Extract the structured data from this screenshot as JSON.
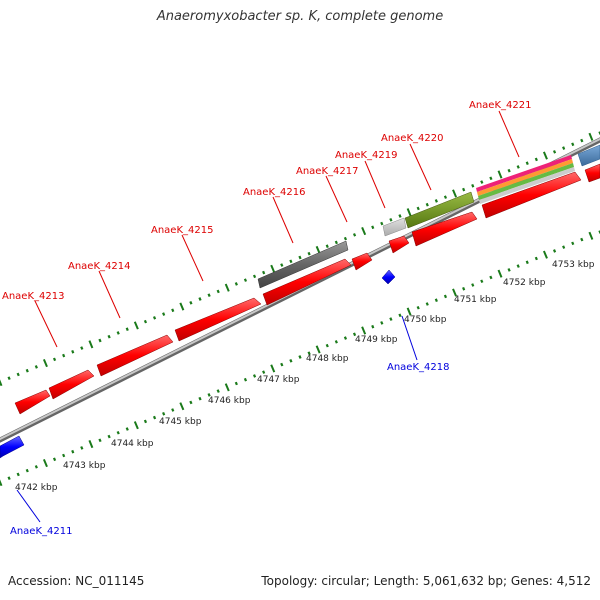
{
  "title": "Anaeromyxobacter sp. K, complete genome",
  "footer": {
    "accession": "Accession: NC_011145",
    "summary": "Topology: circular; Length: 5,061,632 bp; Genes: 4,512"
  },
  "colors": {
    "forward_gene": "#ff0000",
    "reverse_gene": "#0000ff",
    "backbone": "#999999",
    "tick": "#1a7a1a",
    "forward_label": "#dd0000",
    "reverse_label": "#0000dd",
    "feature_gray": "#666666",
    "feature_lightgray": "#bbbbbb",
    "feature_olive": "#779922",
    "feature_steelblue": "#5588bb"
  },
  "scale": {
    "unit": "kbp",
    "labels": [
      {
        "kbp": 4742,
        "text": "4742 kbp"
      },
      {
        "kbp": 4743,
        "text": "4743 kbp"
      },
      {
        "kbp": 4744,
        "text": "4744 kbp"
      },
      {
        "kbp": 4745,
        "text": "4745 kbp"
      },
      {
        "kbp": 4746,
        "text": "4746 kbp"
      },
      {
        "kbp": 4747,
        "text": "4747 kbp"
      },
      {
        "kbp": 4748,
        "text": "4748 kbp"
      },
      {
        "kbp": 4749,
        "text": "4749 kbp"
      },
      {
        "kbp": 4750,
        "text": "4750 kbp"
      },
      {
        "kbp": 4751,
        "text": "4751 kbp"
      },
      {
        "kbp": 4752,
        "text": "4752 kbp"
      },
      {
        "kbp": 4753,
        "text": "4753 kbp"
      }
    ]
  },
  "genes": {
    "forward": [
      {
        "name": "AnaeK_4213",
        "label": "AnaeK_4213"
      },
      {
        "name": "AnaeK_4214",
        "label": "AnaeK_4214"
      },
      {
        "name": "AnaeK_4215",
        "label": "AnaeK_4215"
      },
      {
        "name": "AnaeK_4216",
        "label": "AnaeK_4216"
      },
      {
        "name": "AnaeK_4217",
        "label": "AnaeK_4217"
      },
      {
        "name": "AnaeK_4219",
        "label": "AnaeK_4219"
      },
      {
        "name": "AnaeK_4220",
        "label": "AnaeK_4220"
      },
      {
        "name": "AnaeK_4221",
        "label": "AnaeK_4221"
      }
    ],
    "reverse": [
      {
        "name": "AnaeK_4211",
        "label": "AnaeK_4211"
      },
      {
        "name": "AnaeK_4218",
        "label": "AnaeK_4218"
      }
    ]
  }
}
